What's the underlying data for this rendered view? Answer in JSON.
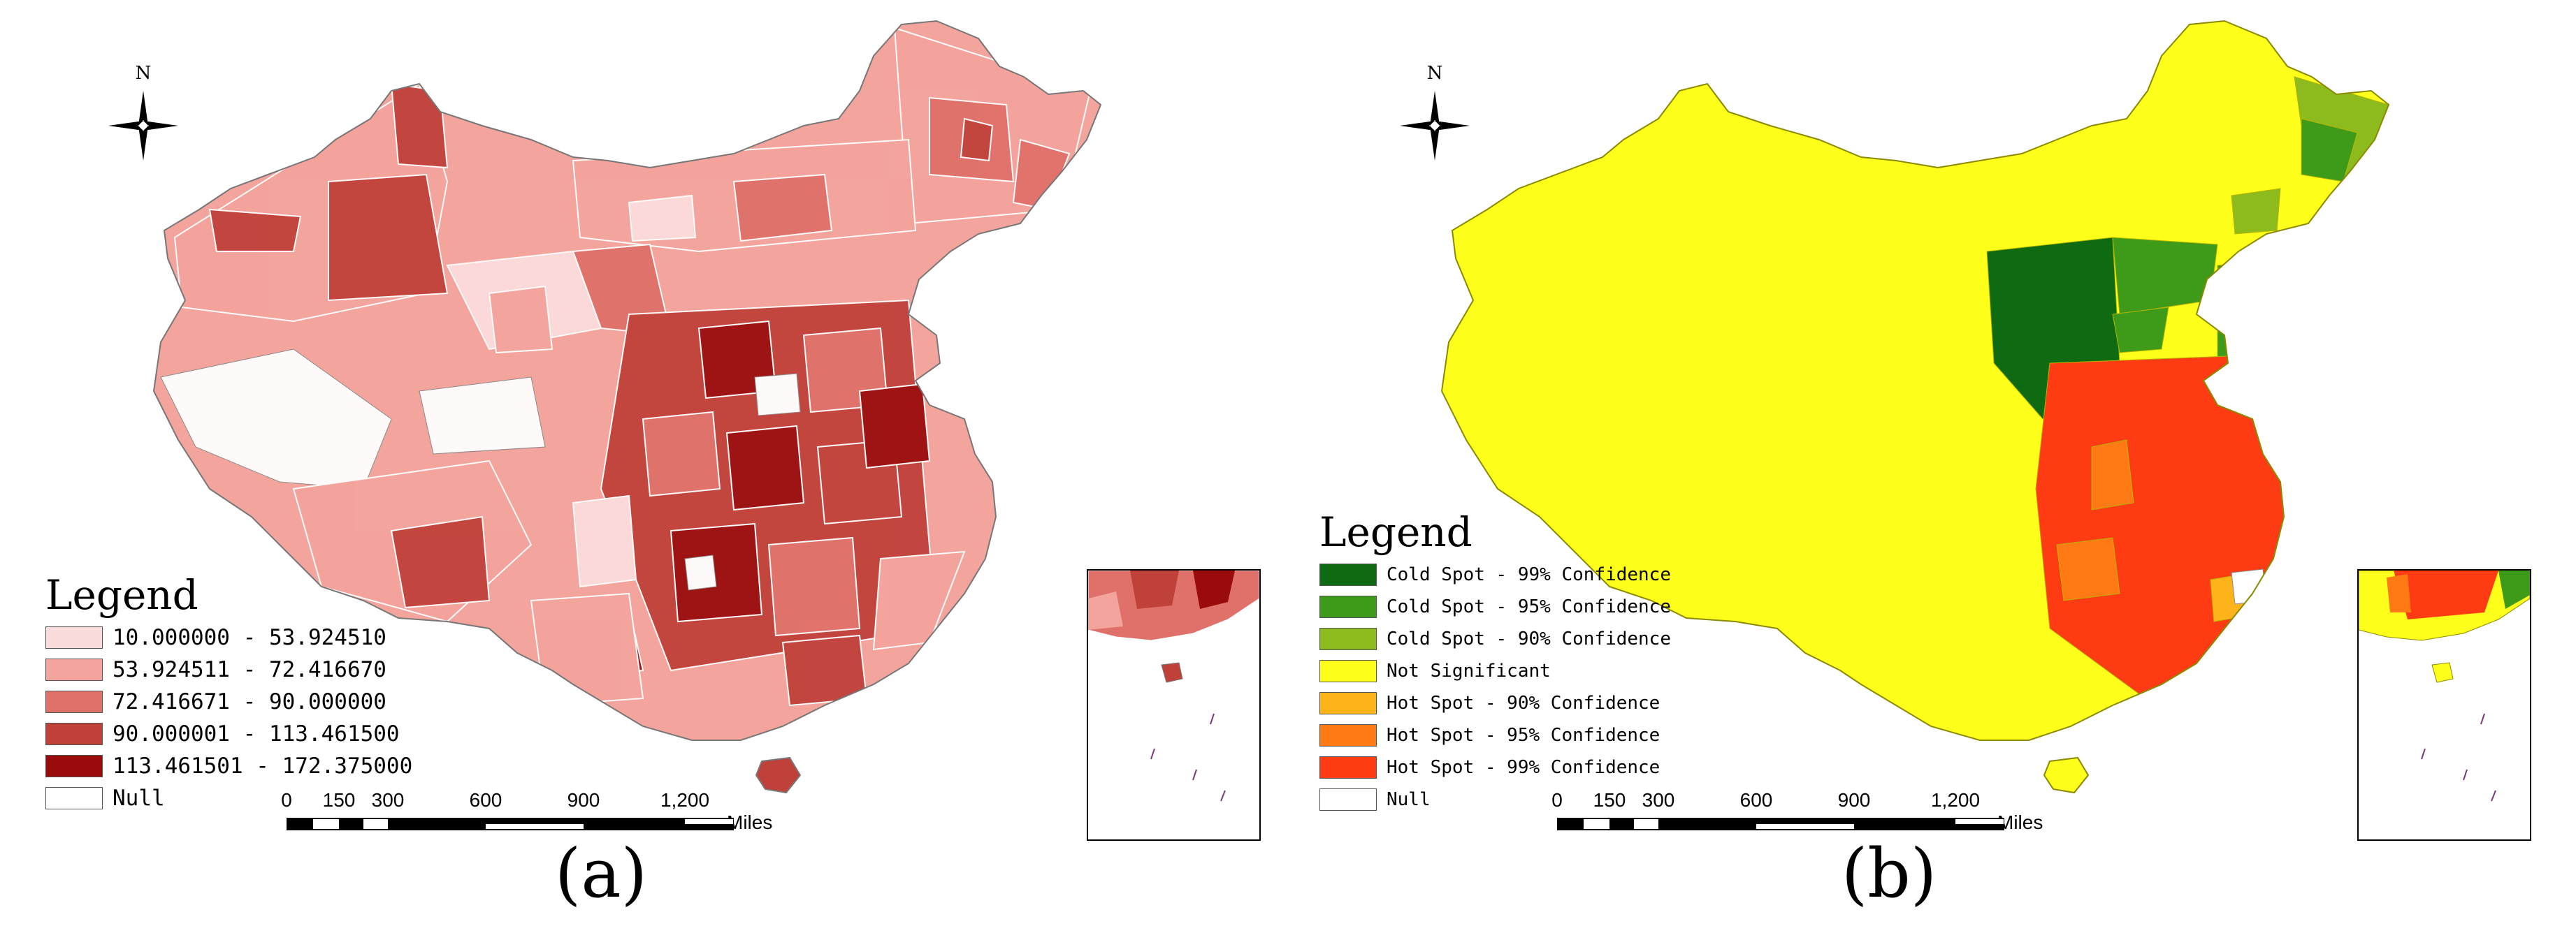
{
  "panel_a": {
    "caption": "(a)",
    "north_label": "N",
    "legend_title": "Legend",
    "legend_items": [
      {
        "label": "10.000000 - 53.924510",
        "color": "#fbdcdc"
      },
      {
        "label": "53.924511 - 72.416670",
        "color": "#f3a49c"
      },
      {
        "label": "72.416671 - 90.000000",
        "color": "#e0706a"
      },
      {
        "label": "90.000001 - 113.461500",
        "color": "#c0413a"
      },
      {
        "label": "113.461501 - 172.375000",
        "color": "#9a0c0c"
      },
      {
        "label": "Null",
        "color": "#ffffff"
      }
    ]
  },
  "panel_b": {
    "caption": "(b)",
    "north_label": "N",
    "legend_title": "Legend",
    "legend_items": [
      {
        "label": "Cold Spot - 99% Confidence",
        "color": "#0f6b12"
      },
      {
        "label": "Cold Spot - 95% Confidence",
        "color": "#3e9b1a"
      },
      {
        "label": "Cold Spot - 90% Confidence",
        "color": "#8dbb1e"
      },
      {
        "label": "Not Significant",
        "color": "#ffff1c"
      },
      {
        "label": "Hot Spot - 90% Confidence",
        "color": "#ffb31a"
      },
      {
        "label": "Hot Spot - 95% Confidence",
        "color": "#ff7a14"
      },
      {
        "label": "Hot Spot - 99% Confidence",
        "color": "#ff3b14"
      },
      {
        "label": "Null",
        "color": "#ffffff"
      }
    ]
  },
  "scale_bar": {
    "ticks": [
      "0",
      "150",
      "300",
      "600",
      "900",
      "1,200"
    ],
    "unit": "Miles"
  }
}
